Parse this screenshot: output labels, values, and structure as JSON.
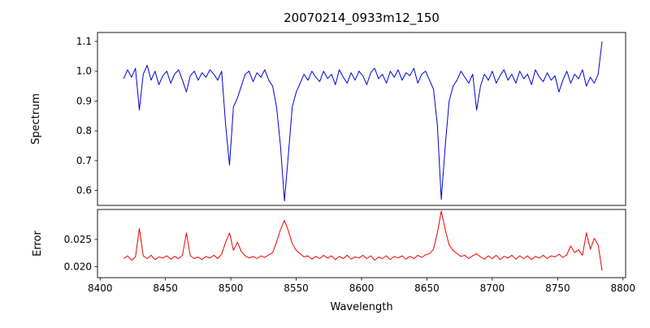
{
  "figure": {
    "title": "20070214_0933m12_150",
    "xlabel": "Wavelength",
    "background_color": "#ffffff",
    "axis_color": "#000000"
  },
  "axes": {
    "xlim": [
      8398,
      8802
    ],
    "xticks": [
      8400,
      8450,
      8500,
      8550,
      8600,
      8650,
      8700,
      8750,
      8800
    ],
    "xtick_labels": [
      "8400",
      "8450",
      "8500",
      "8550",
      "8600",
      "8650",
      "8700",
      "8750",
      "8800"
    ]
  },
  "chart_data": [
    {
      "type": "line",
      "panel": "spectrum",
      "ylabel": "Spectrum",
      "color": "#0000dd",
      "ylim": [
        0.55,
        1.13
      ],
      "yticks": [
        0.6,
        0.7,
        0.8,
        0.9,
        1.0,
        1.1
      ],
      "ytick_labels": [
        "0.6",
        "0.7",
        "0.8",
        "0.9",
        "1.0",
        "1.1"
      ],
      "x_start": 8418,
      "x_step": 3,
      "notes": "Normalized stellar spectrum, continuum near 1.0 with noise; deep Ca II triplet absorption lines near 8498, 8542, 8662; narrow dips near 8430, 8466, 8688, 8750; upward spike to 1.1 at red edge",
      "values": [
        0.975,
        1.005,
        0.98,
        1.01,
        0.87,
        0.99,
        1.02,
        0.97,
        1.0,
        0.955,
        0.985,
        1.0,
        0.96,
        0.99,
        1.005,
        0.97,
        0.93,
        0.985,
        1.0,
        0.97,
        0.995,
        0.98,
        1.005,
        0.99,
        0.97,
        1.0,
        0.82,
        0.685,
        0.88,
        0.91,
        0.95,
        0.99,
        1.0,
        0.965,
        0.995,
        0.98,
        1.005,
        0.97,
        0.95,
        0.88,
        0.75,
        0.565,
        0.72,
        0.88,
        0.93,
        0.96,
        0.99,
        0.97,
        1.0,
        0.98,
        0.965,
        1.0,
        0.975,
        0.99,
        0.955,
        1.005,
        0.98,
        0.96,
        0.995,
        0.97,
        1.0,
        0.985,
        0.955,
        0.995,
        1.01,
        0.975,
        0.99,
        0.96,
        1.0,
        0.98,
        1.005,
        0.97,
        0.995,
        0.985,
        1.01,
        0.96,
        0.99,
        1.0,
        0.97,
        0.94,
        0.82,
        0.57,
        0.75,
        0.9,
        0.95,
        0.97,
        1.0,
        0.98,
        0.96,
        0.99,
        0.87,
        0.95,
        0.99,
        0.97,
        1.0,
        0.96,
        0.985,
        1.005,
        0.97,
        0.99,
        0.96,
        1.0,
        0.975,
        0.99,
        0.955,
        1.005,
        0.98,
        0.965,
        0.995,
        0.97,
        0.985,
        0.93,
        0.97,
        1.0,
        0.96,
        0.99,
        0.975,
        1.005,
        0.95,
        0.98,
        0.96,
        0.99,
        1.1
      ]
    },
    {
      "type": "line",
      "panel": "error",
      "ylabel": "Error",
      "color": "#ee0000",
      "ylim": [
        0.018,
        0.0305
      ],
      "yticks": [
        0.02,
        0.025
      ],
      "ytick_labels": [
        "0.020",
        "0.025"
      ],
      "x_start": 8418,
      "x_step": 3,
      "notes": "Error spectrum, baseline near 0.0215 with spikes at absorption-line wavelengths 8430, 8466, 8498, 8542, 8662 and small bumps near 8760-8775, ending with a dip near 0.019",
      "values": [
        0.0215,
        0.022,
        0.0212,
        0.0218,
        0.027,
        0.022,
        0.0215,
        0.0221,
        0.0213,
        0.0218,
        0.0216,
        0.022,
        0.0214,
        0.0219,
        0.0215,
        0.0221,
        0.0262,
        0.022,
        0.0215,
        0.0218,
        0.0213,
        0.0219,
        0.0216,
        0.0221,
        0.0215,
        0.0223,
        0.0245,
        0.0262,
        0.023,
        0.0245,
        0.0228,
        0.022,
        0.0216,
        0.0219,
        0.0215,
        0.022,
        0.0217,
        0.0222,
        0.0226,
        0.0245,
        0.0268,
        0.0285,
        0.0266,
        0.0242,
        0.023,
        0.0224,
        0.0218,
        0.022,
        0.0214,
        0.0219,
        0.0215,
        0.0221,
        0.0216,
        0.022,
        0.0213,
        0.0219,
        0.0215,
        0.0221,
        0.0214,
        0.0218,
        0.0216,
        0.0221,
        0.0215,
        0.022,
        0.0212,
        0.0218,
        0.0215,
        0.022,
        0.0213,
        0.0219,
        0.0216,
        0.022,
        0.0214,
        0.0219,
        0.0215,
        0.0221,
        0.0217,
        0.0222,
        0.0224,
        0.0232,
        0.0262,
        0.0302,
        0.0268,
        0.024,
        0.023,
        0.0224,
        0.0219,
        0.0221,
        0.0215,
        0.022,
        0.0224,
        0.0218,
        0.0214,
        0.022,
        0.0215,
        0.0221,
        0.0213,
        0.0219,
        0.0216,
        0.0221,
        0.0214,
        0.022,
        0.0215,
        0.022,
        0.0213,
        0.0219,
        0.0216,
        0.0221,
        0.0215,
        0.022,
        0.0218,
        0.0223,
        0.0217,
        0.0222,
        0.0238,
        0.0226,
        0.0231,
        0.0221,
        0.0262,
        0.0232,
        0.0252,
        0.024,
        0.0193
      ]
    }
  ]
}
